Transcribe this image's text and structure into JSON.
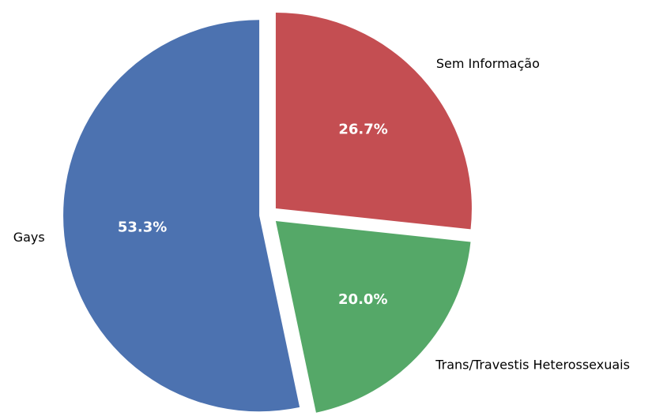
{
  "chart_data": {
    "type": "pie",
    "categories": [
      "Sem Informação",
      "Trans/Travestis Heterossexuais",
      "Gays"
    ],
    "values": [
      26.7,
      20.0,
      53.3
    ],
    "value_labels": [
      "26.7%",
      "20.0%",
      "53.3%"
    ],
    "colors": [
      "#c44e52",
      "#55a868",
      "#4c72b0"
    ]
  }
}
